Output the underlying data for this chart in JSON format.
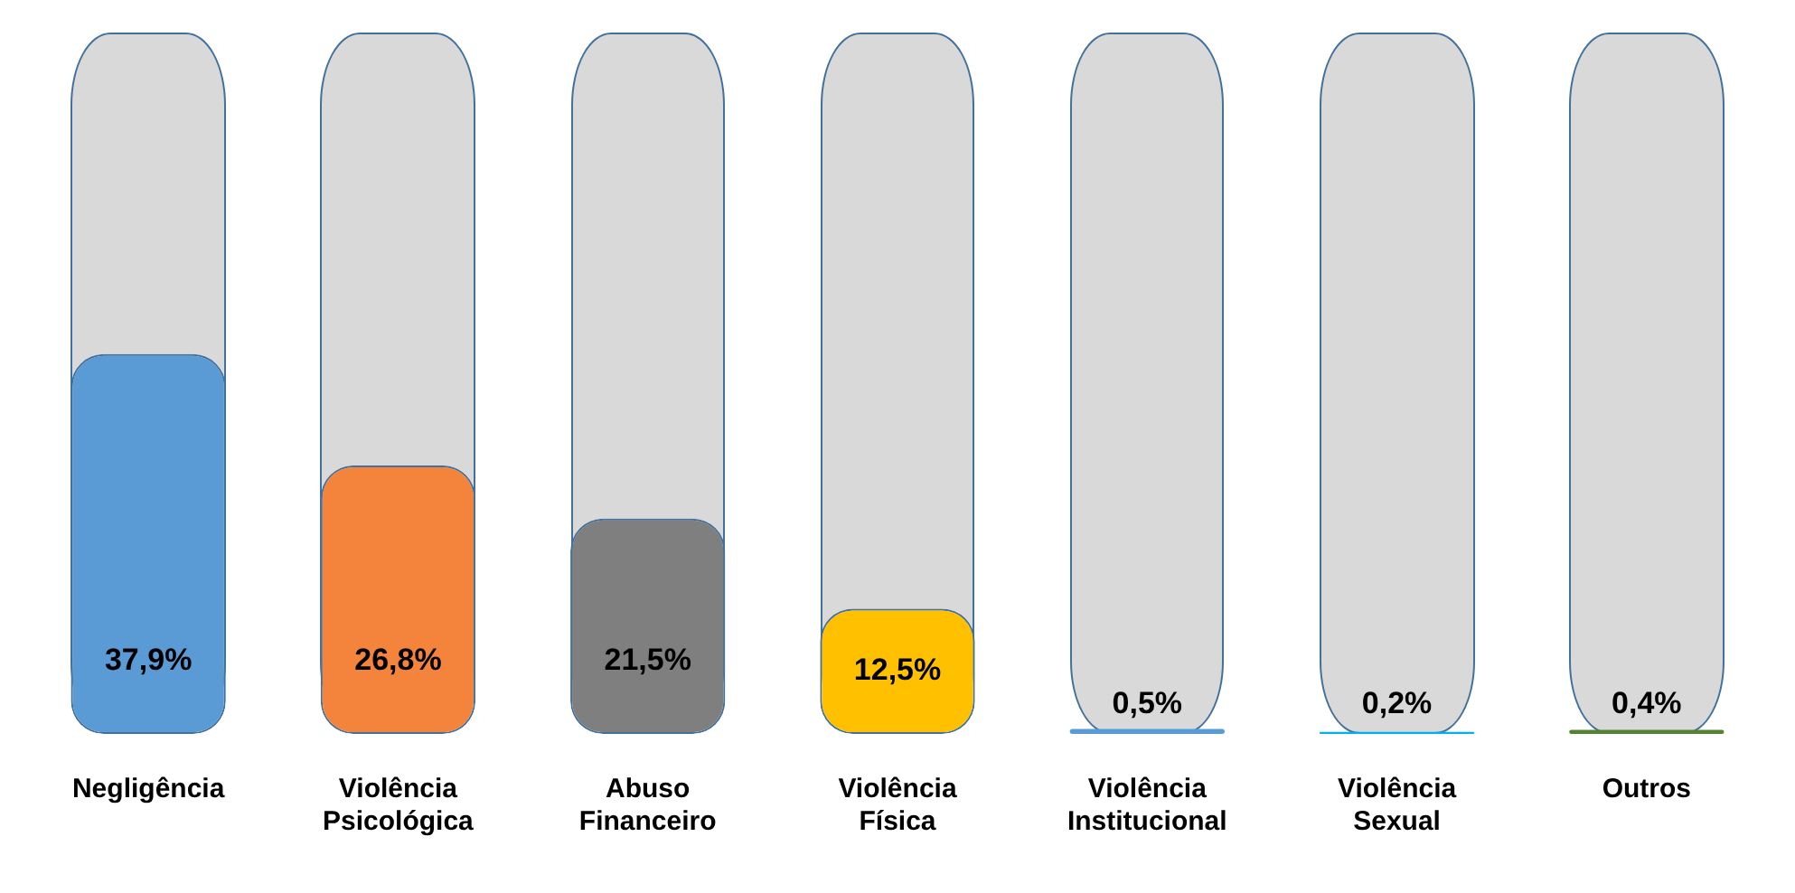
{
  "chart_data": {
    "type": "bar",
    "categories": [
      "Negligência",
      "Violência Psicológica",
      "Abuso Financeiro",
      "Violência Física",
      "Violência Institucional",
      "Violência Sexual",
      "Outros"
    ],
    "values": [
      37.9,
      26.8,
      21.5,
      12.5,
      0.5,
      0.2,
      0.4
    ],
    "colors": [
      "#5b9bd5",
      "#f4843b",
      "#7f7f7f",
      "#ffc000",
      "#5b9bd5",
      "#00b0f0",
      "#548235"
    ],
    "value_labels": [
      "37,9%",
      "26,8%",
      "21,5%",
      "12,5%",
      "0,5%",
      "0,2%",
      "0,4%"
    ],
    "tick_labels": "x",
    "grid": false,
    "legend": false
  }
}
